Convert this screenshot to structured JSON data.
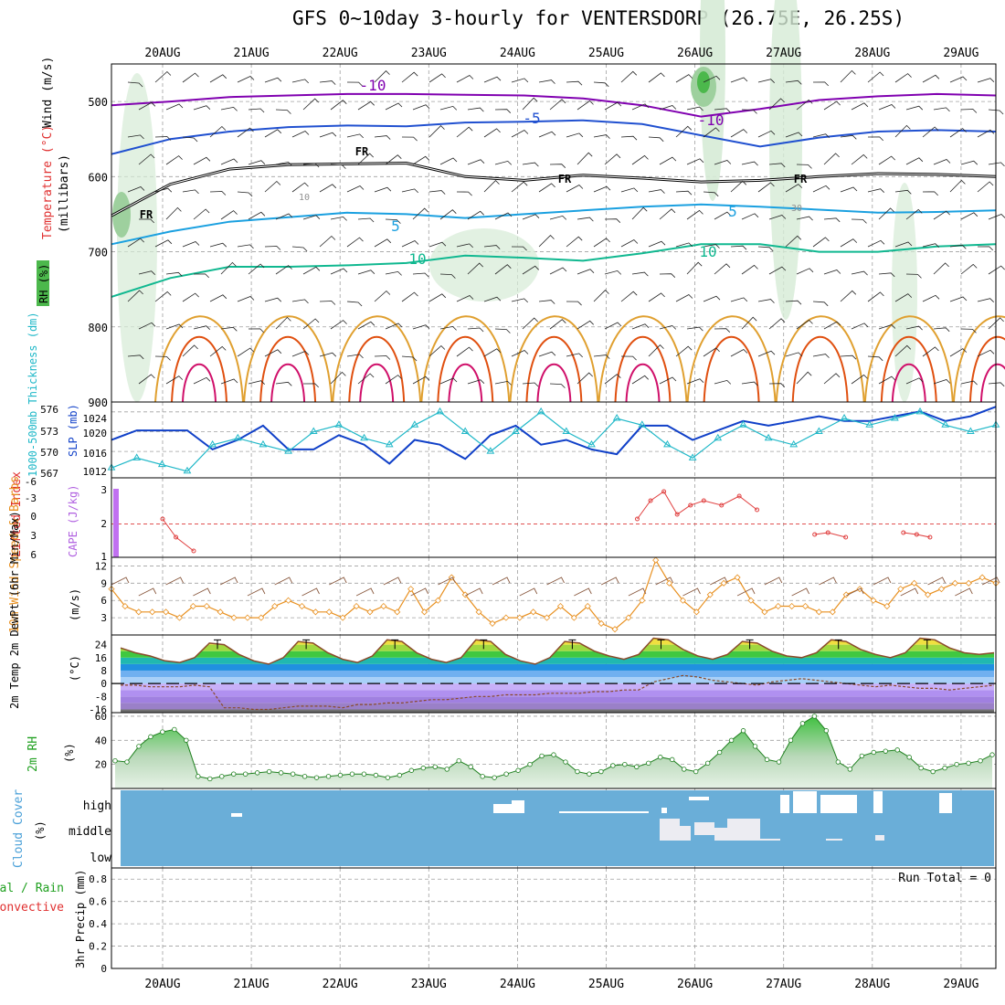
{
  "title": "GFS 0~10day 3-hourly for VENTERSDORP (26.75E, 26.25S)",
  "chart_data": [
    {
      "panel": "upper-air",
      "type": "contour",
      "ylabel_top": "Wind (m/s)",
      "ylabel_temp": "Temperature (°C)",
      "ylabel_rh": "RH (%)",
      "ylabel_units": "(millibars)",
      "ylim": [
        900,
        450
      ],
      "yticks": [
        "500",
        "600",
        "700",
        "800",
        "900"
      ],
      "isotherm_labels": [
        "-10",
        "-10",
        "-5",
        "FR",
        "FR",
        "FR",
        "FR",
        "5",
        "5",
        "10",
        "10"
      ],
      "rh_labels": [
        "10",
        "30"
      ],
      "isotherms": [
        {
          "name": "-10",
          "color": "#8000b0",
          "values": [
            505,
            500,
            494,
            492,
            490,
            490,
            491,
            492,
            496,
            505,
            520,
            510,
            498,
            493,
            490,
            492
          ]
        },
        {
          "name": "-5",
          "color": "#2050d0",
          "values": [
            570,
            550,
            540,
            534,
            532,
            533,
            528,
            527,
            525,
            530,
            545,
            560,
            548,
            540,
            538,
            540
          ]
        },
        {
          "name": "FR",
          "color": "#000000",
          "values": [
            652,
            610,
            590,
            584,
            583,
            582,
            600,
            605,
            598,
            602,
            607,
            605,
            600,
            596,
            597,
            600
          ]
        },
        {
          "name": "5",
          "color": "#1aa0e0",
          "values": [
            690,
            673,
            660,
            654,
            648,
            650,
            655,
            650,
            645,
            640,
            637,
            640,
            644,
            648,
            647,
            645
          ]
        },
        {
          "name": "10",
          "color": "#10b890",
          "values": [
            760,
            735,
            720,
            720,
            718,
            715,
            705,
            708,
            712,
            702,
            690,
            690,
            700,
            700,
            693,
            690
          ]
        }
      ]
    },
    {
      "panel": "thickness-slp",
      "type": "line",
      "ylabel_left": "1000-500mb Thickness (dm)",
      "ylabel_right": "SLP (mb)",
      "thickness_ticks": [
        "576",
        "573",
        "570",
        "567"
      ],
      "slp_ticks": [
        "1024",
        "1020",
        "1016",
        "1012"
      ],
      "series": [
        {
          "name": "SLP (mb)",
          "color": "#1040c8",
          "values": [
            1018,
            1020,
            1020,
            1020,
            1016,
            1018,
            1021,
            1016,
            1016,
            1019,
            1017,
            1013,
            1018,
            1017,
            1014,
            1019,
            1021,
            1017,
            1018,
            1016,
            1015,
            1021,
            1021,
            1018,
            1020,
            1022,
            1021,
            1022,
            1023,
            1022,
            1022,
            1023,
            1024,
            1022,
            1023,
            1025
          ]
        },
        {
          "name": "Thickness (dm)",
          "color": "#20b8c8",
          "values": [
            567.5,
            569,
            568,
            567,
            571,
            572,
            571,
            570,
            573,
            574,
            572,
            571,
            574,
            576,
            573,
            570,
            573,
            576,
            573,
            571,
            575,
            574,
            571,
            569,
            572,
            574,
            572,
            571,
            573,
            575,
            574,
            575,
            576,
            574,
            573,
            574
          ]
        }
      ]
    },
    {
      "panel": "lifted-cape",
      "type": "line",
      "ylabel_left": "Lifted Index",
      "ylabel_right": "CAPE (J/kg)",
      "li_ticks": [
        "-6",
        "-3",
        "0",
        "3",
        "6"
      ],
      "cape_ticks": [
        "3",
        "2",
        "1"
      ],
      "cape_values": [
        3,
        1.3,
        1
      ],
      "li_segments": [
        {
          "x": [
            0,
            0.15,
            0.35
          ],
          "values": [
            4.5,
            6.5,
            8
          ]
        },
        {
          "x": [
            5.35,
            5.5,
            5.65,
            5.8,
            5.95,
            6.1,
            6.3,
            6.5,
            6.7
          ],
          "values": [
            4.5,
            2.5,
            1.5,
            4,
            3,
            2.5,
            3,
            2,
            3.5
          ]
        },
        {
          "x": [
            7.35,
            7.5,
            7.7
          ],
          "values": [
            6.2,
            6,
            6.5
          ]
        },
        {
          "x": [
            8.35,
            8.5,
            8.65
          ],
          "values": [
            6,
            6.2,
            6.5
          ]
        }
      ]
    },
    {
      "panel": "wind10m",
      "type": "line",
      "ylabel_left": "10m Wind Speed & Barbs",
      "ylabel_units": "(m/s)",
      "yticks": [
        "12",
        "9",
        "6",
        "3"
      ],
      "color": "#e89020",
      "values": [
        8,
        5,
        4,
        4,
        4,
        3,
        5,
        5,
        4,
        3,
        3,
        3,
        5,
        6,
        5,
        4,
        4,
        3,
        5,
        4,
        5,
        4,
        8,
        4,
        6,
        10,
        7,
        4,
        2,
        3,
        3,
        4,
        3,
        5,
        3,
        5,
        2,
        1,
        3,
        6,
        13,
        9,
        6,
        4,
        7,
        9,
        10,
        6,
        4,
        5,
        5,
        5,
        4,
        4,
        7,
        8,
        6,
        5,
        8,
        9,
        7,
        8,
        9,
        9,
        10,
        9
      ]
    },
    {
      "panel": "temp2m",
      "type": "area",
      "ylabel_left": "2m Temp 2m DewPt (6hr Min/Max)",
      "ylabel_units": "(°C)",
      "yticks": [
        "24",
        "16",
        "8",
        "0",
        "-8",
        "-16"
      ],
      "temp": [
        22,
        19,
        17,
        14,
        13,
        16,
        25,
        24,
        18,
        14,
        12,
        16,
        26,
        25,
        19,
        15,
        13,
        17,
        27,
        26,
        19,
        15,
        13,
        16,
        27,
        26,
        18,
        14,
        12,
        16,
        26,
        25,
        20,
        17,
        15,
        18,
        28,
        27,
        21,
        17,
        15,
        18,
        26,
        25,
        20,
        17,
        16,
        19,
        27,
        26,
        21,
        18,
        16,
        19,
        28,
        27,
        22,
        19,
        18,
        19
      ],
      "dewpt": [
        -1,
        -1,
        -2,
        -2,
        -2,
        -1,
        -2,
        -15,
        -15,
        -16,
        -16,
        -15,
        -14,
        -14,
        -14,
        -15,
        -13,
        -13,
        -12,
        -12,
        -11,
        -10,
        -10,
        -9,
        -8,
        -8,
        -7,
        -7,
        -7,
        -6,
        -6,
        -6,
        -5,
        -5,
        -4,
        -4,
        1,
        3,
        5,
        4,
        2,
        1,
        0,
        -1,
        1,
        2,
        3,
        2,
        1,
        0,
        -1,
        -2,
        -1,
        -2,
        -3,
        -3,
        -4,
        -3,
        -2,
        -1
      ]
    },
    {
      "panel": "rh2m",
      "type": "area",
      "ylabel_left": "2m RH",
      "ylabel_units": "(%)",
      "yticks": [
        "60",
        "40",
        "20"
      ],
      "values": [
        23,
        22,
        35,
        43,
        47,
        49,
        40,
        10,
        8,
        10,
        12,
        12,
        13,
        14,
        13,
        12,
        10,
        9,
        10,
        11,
        12,
        12,
        11,
        9,
        11,
        15,
        17,
        18,
        16,
        23,
        18,
        10,
        9,
        12,
        15,
        20,
        27,
        28,
        22,
        14,
        12,
        14,
        19,
        20,
        18,
        21,
        26,
        24,
        16,
        14,
        21,
        30,
        40,
        48,
        35,
        24,
        22,
        40,
        54,
        60,
        48,
        22,
        16,
        27,
        30,
        31,
        32,
        26,
        17,
        14,
        17,
        20,
        21,
        23,
        28
      ]
    },
    {
      "panel": "cloud",
      "type": "heatmap",
      "ylabel_left": "Cloud Cover",
      "ylabel_units": "(%)",
      "levels": [
        "high",
        "middle",
        "low"
      ],
      "high_tenths": [
        0,
        0,
        0,
        0,
        0,
        0,
        0,
        0,
        0,
        0,
        0,
        0,
        0,
        0,
        0,
        0,
        0,
        0,
        0,
        0,
        0,
        0,
        0,
        0,
        0,
        0,
        0,
        0,
        0,
        0,
        0,
        0,
        0,
        0,
        0,
        0,
        1,
        3,
        5,
        4,
        1,
        0,
        1,
        0,
        0,
        0,
        0,
        0,
        0,
        0,
        0,
        0,
        0,
        0,
        0,
        0,
        0,
        0,
        0,
        0,
        0,
        0,
        0,
        0,
        0,
        0,
        0,
        0,
        0,
        0,
        0,
        0,
        0,
        0,
        0,
        0,
        0,
        0,
        0,
        0,
        0,
        0,
        0,
        0,
        0,
        0,
        0,
        0,
        0,
        0,
        0,
        0,
        0,
        0,
        0,
        0,
        0,
        0,
        0,
        0,
        0,
        0,
        0,
        0,
        0,
        0,
        0,
        0,
        0,
        0,
        0,
        0,
        0,
        0,
        0,
        0,
        0,
        0,
        0,
        0,
        0,
        0,
        0,
        0,
        0,
        0,
        0,
        0,
        0,
        0,
        0,
        0,
        0,
        0,
        0,
        0,
        0,
        0,
        0,
        0,
        0,
        0,
        0,
        0,
        0,
        0,
        0,
        0,
        0,
        0,
        0,
        0,
        0,
        0,
        0,
        0,
        0,
        0,
        0,
        0,
        0,
        0,
        0,
        0,
        0,
        0,
        0,
        0,
        0,
        0
      ],
      "run_total_label": "Run Total = 0"
    },
    {
      "panel": "precip",
      "type": "bar",
      "ylabel_left": "Total / Rain",
      "ylabel_left2": "Convective",
      "ylabel_right": "3hr Precip (mm)",
      "yticks": [
        "0.8",
        "0.6",
        "0.4",
        "0.2",
        "0"
      ],
      "ylim": [
        0,
        0.9
      ],
      "values": []
    }
  ],
  "dates": [
    "20AUG",
    "21AUG",
    "22AUG",
    "23AUG",
    "24AUG",
    "25AUG",
    "26AUG",
    "27AUG",
    "28AUG",
    "29AUG"
  ],
  "colors": {
    "grid": "#a0a0a0",
    "rh_light": "#d6ebd6",
    "rh_mid": "#9ed09e",
    "rh_dark": "#4cb84c",
    "cloud_blue": "#6aaed8",
    "warm": "#e0a030",
    "hot": "#e05010",
    "hotter": "#d0106a"
  }
}
